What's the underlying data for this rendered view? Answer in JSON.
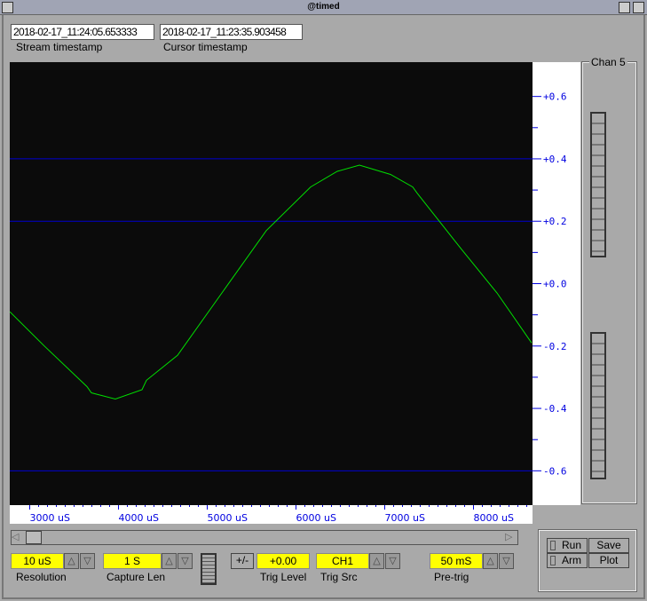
{
  "window": {
    "title": "@timed"
  },
  "stream_timestamp": {
    "value": "2018-02-17_11:24:05.653333",
    "label": "Stream timestamp"
  },
  "cursor_timestamp": {
    "value": "2018-02-17_11:23:35.903458",
    "label": "Cursor timestamp"
  },
  "channel_panel": {
    "label": "Chan 5"
  },
  "colors": {
    "trace": "#00e000",
    "grid": "#0000d0",
    "plot_bg": "#0b0b0b",
    "field_yellow": "#ffff00"
  },
  "chart_data": {
    "type": "line",
    "x_tick_labels": [
      "3000  uS",
      "4000  uS",
      "5000  uS",
      "6000  uS",
      "7000  uS",
      "8000  uS"
    ],
    "x_ticks": [
      3000,
      4000,
      5000,
      6000,
      7000,
      8000
    ],
    "y_tick_labels": [
      "+0.6",
      "+0.4",
      "+0.2",
      "+0.0",
      "-0.2",
      "-0.4",
      "-0.6"
    ],
    "y_ticks": [
      0.6,
      0.4,
      0.2,
      0.0,
      -0.2,
      -0.4,
      -0.6
    ],
    "xlim": [
      2775,
      8665
    ],
    "ylim": [
      -0.71,
      0.71
    ],
    "grid_lines_y": [
      0.4,
      0.2,
      -0.6
    ],
    "series": [
      {
        "color": "#00e000",
        "x": [
          2775,
          3165,
          3645,
          3695,
          3965,
          4265,
          4315,
          4665,
          5165,
          5665,
          6165,
          6465,
          6715,
          7065,
          7315,
          7365,
          7865,
          8265,
          8655
        ],
        "y": [
          -0.09,
          -0.2,
          -0.33,
          -0.35,
          -0.37,
          -0.34,
          -0.31,
          -0.23,
          -0.03,
          0.17,
          0.31,
          0.36,
          0.38,
          0.35,
          0.31,
          0.29,
          0.11,
          -0.03,
          -0.19
        ]
      }
    ]
  },
  "controls": {
    "resolution": {
      "value": "10 uS",
      "label": "Resolution"
    },
    "capture_len": {
      "value": "1 S",
      "label": "Capture Len"
    },
    "trig_sign": "+/-",
    "trig_level": {
      "value": "+0.00",
      "label": "Trig Level"
    },
    "trig_src": {
      "value": "CH1",
      "label": "Trig Src"
    },
    "pre_trig": {
      "value": "50 mS",
      "label": "Pre-trig"
    },
    "up": "△",
    "down": "▽"
  },
  "actions": {
    "run": "Run",
    "arm": "Arm",
    "save": "Save",
    "plot": "Plot"
  }
}
